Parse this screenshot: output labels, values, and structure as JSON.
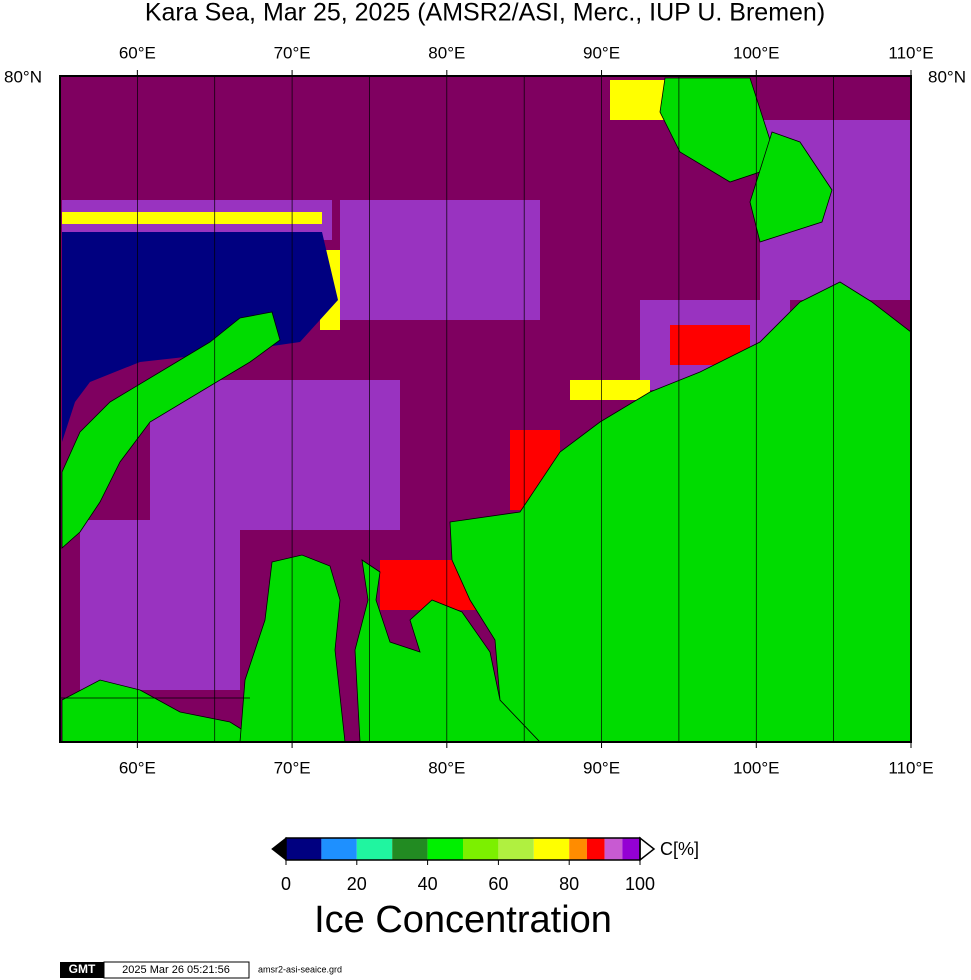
{
  "title": "Kara Sea, Mar 25, 2025 (AMSR2/ASI, Merc., IUP U. Bremen)",
  "map": {
    "xlim": [
      55,
      110
    ],
    "lon_ticks": [
      {
        "value": 60,
        "label": "60°E"
      },
      {
        "value": 70,
        "label": "70°E"
      },
      {
        "value": 80,
        "label": "80°E"
      },
      {
        "value": 90,
        "label": "90°E"
      },
      {
        "value": 100,
        "label": "100°E"
      },
      {
        "value": 110,
        "label": "110°E"
      }
    ],
    "grid_lons": [
      60,
      65,
      70,
      75,
      80,
      85,
      90,
      95,
      100,
      105
    ],
    "lat_label": "80°N"
  },
  "colorbar": {
    "bounds": [
      0,
      10,
      20,
      30,
      40,
      50,
      60,
      70,
      80,
      85,
      90,
      95,
      100
    ],
    "colors": [
      "#000080",
      "#1e90ff",
      "#20f5a0",
      "#228b22",
      "#00f000",
      "#7cf000",
      "#b0f040",
      "#ffff00",
      "#ff8c00",
      "#ff0000",
      "#c85ad2",
      "#9400d3"
    ],
    "ticks": [
      0,
      20,
      40,
      60,
      80,
      100
    ],
    "unit": "C[%]",
    "label": "Ice Concentration"
  },
  "footer": {
    "logo": "GMT",
    "timestamp": "2025 Mar 26 05:21:56",
    "file": "amsr2-asi-seaice.grd"
  }
}
